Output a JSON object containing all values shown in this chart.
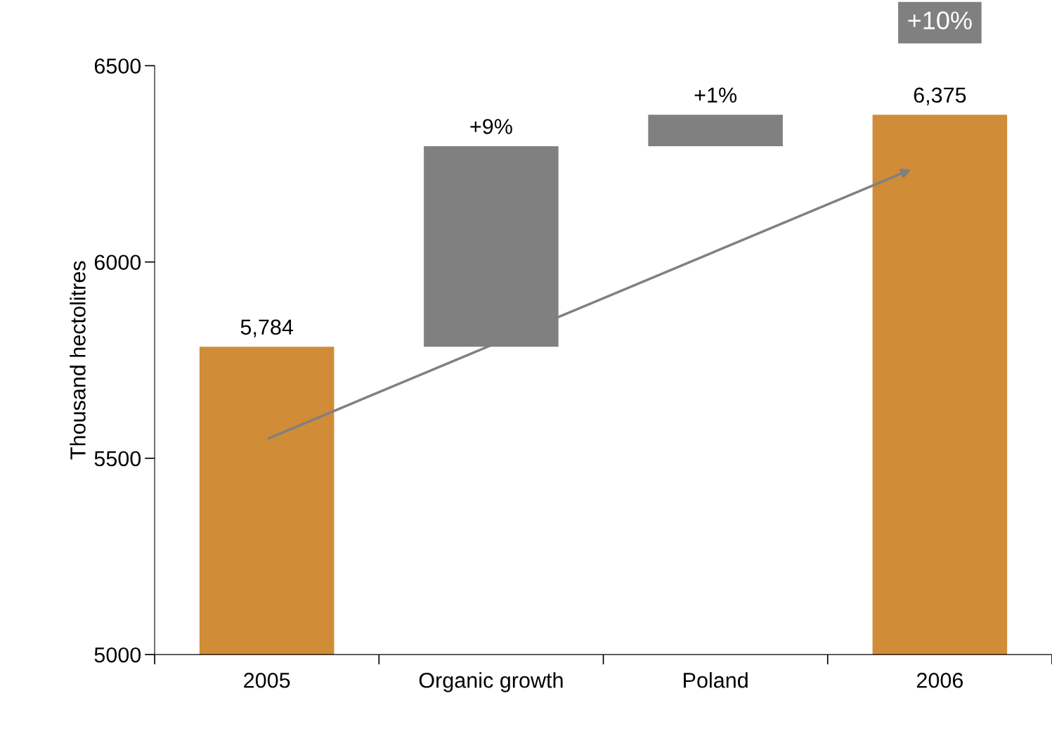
{
  "chart_data": {
    "type": "bar",
    "categories": [
      "2005",
      "Organic growth",
      "Poland",
      "2006"
    ],
    "values": [
      5784,
      511,
      80,
      6375
    ],
    "base": [
      null,
      5784,
      6295,
      null
    ],
    "colors": [
      "#d08c37",
      "#808080",
      "#808080",
      "#d08c37"
    ],
    "value_labels": [
      "5,784",
      null,
      null,
      "6,375"
    ],
    "ylabel": "Thousand hectolitres",
    "ylim": [
      5000,
      6500
    ],
    "yticks": [
      5000,
      5500,
      6000,
      6500
    ],
    "annotations": [
      {
        "text": "+9%",
        "x": "Organic growth",
        "y": 6295
      },
      {
        "text": "+1%",
        "x": "Poland",
        "y": 6375
      },
      "+10%"
    ],
    "grid": false,
    "legend": false
  }
}
